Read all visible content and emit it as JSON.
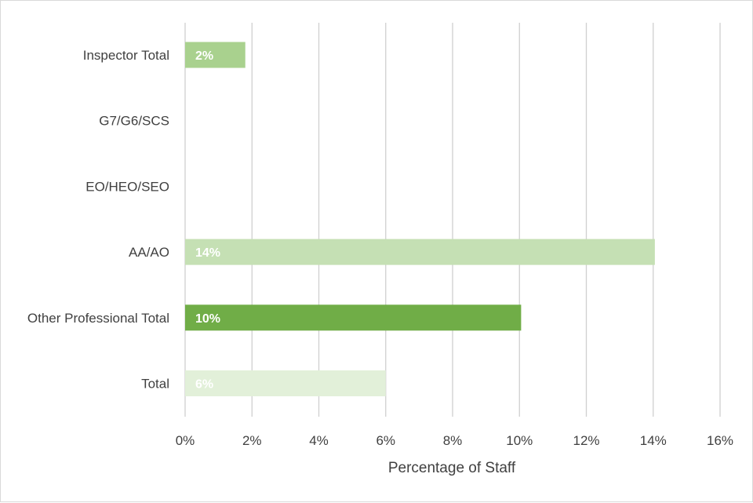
{
  "chart_data": {
    "type": "bar",
    "orientation": "horizontal",
    "title": "",
    "xlabel": "Percentage of Staff",
    "ylabel": "",
    "xlim": [
      0,
      16
    ],
    "x_ticks": [
      "0%",
      "2%",
      "4%",
      "6%",
      "8%",
      "10%",
      "12%",
      "14%",
      "16%"
    ],
    "grid": true,
    "categories": [
      "Inspector Total",
      "G7/G6/SCS",
      "EO/HEO/SEO",
      "AA/AO",
      "Other Professional Total",
      "Total"
    ],
    "values": [
      1.8,
      null,
      null,
      14.05,
      10.05,
      6.0
    ],
    "data_labels": [
      "2%",
      "",
      "",
      "14%",
      "10%",
      "6%"
    ],
    "colors": [
      "#a9d18e",
      "#a9d18e",
      "#a9d18e",
      "#c5e0b4",
      "#70ad47",
      "#e2f0d9"
    ]
  }
}
